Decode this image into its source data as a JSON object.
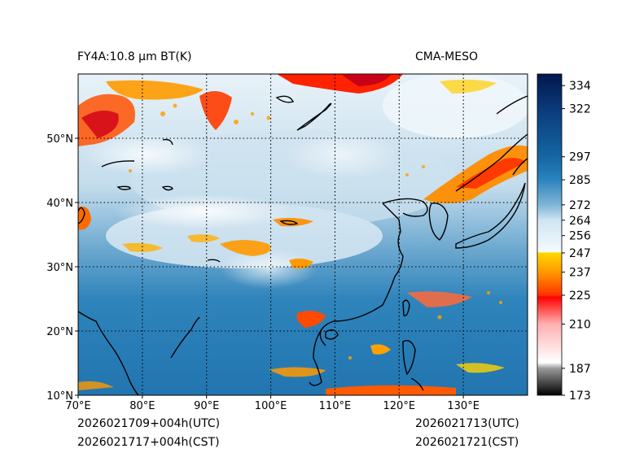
{
  "header": {
    "left_title": "FY4A:10.8 µm BT(K)",
    "right_title": "CMA-MESO"
  },
  "footer": {
    "init_utc": "2026021709+004h(UTC)",
    "init_cst": "2026021717+004h(CST)",
    "valid_utc": "2026021713(UTC)",
    "valid_cst": "2026021721(CST)"
  },
  "map": {
    "lon_range": [
      70,
      140
    ],
    "lat_range": [
      10,
      60
    ],
    "lon_ticks": [
      {
        "value": 70,
        "label": "70°E"
      },
      {
        "value": 80,
        "label": "80°E"
      },
      {
        "value": 90,
        "label": "90°E"
      },
      {
        "value": 100,
        "label": "100°E"
      },
      {
        "value": 110,
        "label": "110°E"
      },
      {
        "value": 120,
        "label": "120°E"
      },
      {
        "value": 130,
        "label": "130°E"
      }
    ],
    "lat_ticks": [
      {
        "value": 10,
        "label": "10°N"
      },
      {
        "value": 20,
        "label": "20°N"
      },
      {
        "value": 30,
        "label": "30°N"
      },
      {
        "value": 40,
        "label": "40°N"
      },
      {
        "value": 50,
        "label": "50°N"
      }
    ]
  },
  "colorbar": {
    "range": [
      173,
      340
    ],
    "stops": [
      {
        "v": 173,
        "c": "#000000"
      },
      {
        "v": 187,
        "c": "#9a9a9a"
      },
      {
        "v": 190,
        "c": "#ffffff"
      },
      {
        "v": 210,
        "c": "#ffb0b0"
      },
      {
        "v": 224,
        "c": "#ff0000"
      },
      {
        "v": 225,
        "c": "#ff3300"
      },
      {
        "v": 237,
        "c": "#ff9900"
      },
      {
        "v": 247,
        "c": "#ffd700"
      },
      {
        "v": 247.5,
        "c": "#f4fbff"
      },
      {
        "v": 264,
        "c": "#cfe5f1"
      },
      {
        "v": 272,
        "c": "#7fb5d6"
      },
      {
        "v": 285,
        "c": "#2b83bd"
      },
      {
        "v": 297,
        "c": "#1566a3"
      },
      {
        "v": 322,
        "c": "#0a3a7a"
      },
      {
        "v": 340,
        "c": "#02174d"
      }
    ],
    "ticks": [
      "173",
      "187",
      "210",
      "225",
      "237",
      "247",
      "256",
      "264",
      "272",
      "285",
      "297",
      "322",
      "334"
    ]
  },
  "colors": {
    "warm_ocean": "#2c7fb8",
    "land_clear": "#b8d8ea",
    "cloud_cold": "#ff6a00"
  }
}
